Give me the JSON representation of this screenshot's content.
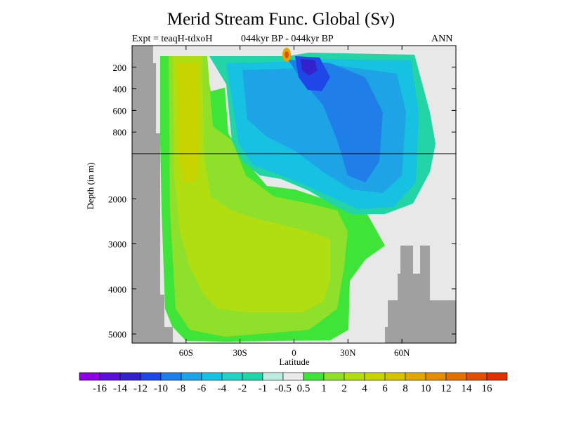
{
  "header": {
    "title": "Merid Stream Func. Global (Sv)",
    "expt": "Expt = teaqH-tdxoH",
    "period": "044kyr BP - 044kyr BP",
    "season": "ANN"
  },
  "colors": {
    "background": "#e8e8e8",
    "land": "#a0a0a0",
    "scale": [
      "#8a00e0",
      "#5a10d8",
      "#3322cc",
      "#1f46e6",
      "#1f7ee8",
      "#1ea4e6",
      "#16c1e2",
      "#22d2c6",
      "#22d4a6",
      "#bdece0",
      "#eaeaea",
      "#3ee438",
      "#8ee02a",
      "#b0de10",
      "#c8d400",
      "#d4c400",
      "#e0a800",
      "#e28e00",
      "#e27000",
      "#e05000",
      "#e03000"
    ]
  },
  "chart_data": {
    "type": "heatmap",
    "title": "Merid Stream Func. Global (Sv)",
    "xlabel": "Latitude",
    "ylabel": "Depth (in m)",
    "x_ticks": [
      "60S",
      "30S",
      "0",
      "30N",
      "60N"
    ],
    "x_tick_values": [
      -60,
      -30,
      0,
      30,
      60
    ],
    "y_ticks": [
      "200",
      "400",
      "600",
      "800",
      "2000",
      "3000",
      "4000",
      "5000"
    ],
    "y_tick_values": [
      200,
      400,
      600,
      800,
      2000,
      3000,
      4000,
      5000
    ],
    "xlim": [
      -90,
      90
    ],
    "ylim": [
      5000,
      0
    ],
    "colorbar_labels": [
      "-16",
      "-14",
      "-12",
      "-10",
      "-8",
      "-6",
      "-4",
      "-2",
      "-1",
      "-0.5",
      "0.5",
      "1",
      "2",
      "4",
      "6",
      "8",
      "10",
      "12",
      "14",
      "16"
    ]
  }
}
